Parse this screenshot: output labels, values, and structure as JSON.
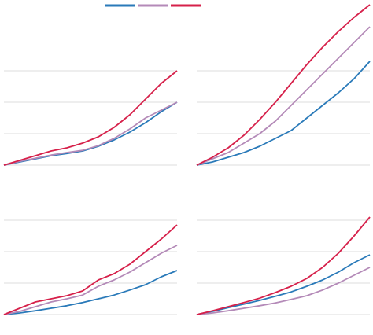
{
  "chart_data": [
    {
      "type": "line",
      "ylim": [
        0,
        5.2
      ],
      "yticks": [
        0,
        1,
        2,
        3
      ],
      "grid": true,
      "series": [
        {
          "color": "#2a7ab9",
          "values": [
            0,
            0.1,
            0.2,
            0.3,
            0.37,
            0.45,
            0.6,
            0.8,
            1.05,
            1.35,
            1.7,
            2.0
          ]
        },
        {
          "color": "#b48ab8",
          "values": [
            0,
            0.12,
            0.22,
            0.32,
            0.4,
            0.47,
            0.62,
            0.85,
            1.15,
            1.5,
            1.75,
            2.0
          ]
        },
        {
          "color": "#d6204a",
          "values": [
            0,
            0.15,
            0.3,
            0.45,
            0.55,
            0.7,
            0.9,
            1.2,
            1.6,
            2.1,
            2.6,
            3.0
          ]
        }
      ]
    },
    {
      "type": "line",
      "ylim": [
        0,
        5.2
      ],
      "yticks": [
        0,
        1,
        2,
        3
      ],
      "grid": true,
      "series": [
        {
          "color": "#2a7ab9",
          "values": [
            0,
            0.1,
            0.25,
            0.4,
            0.6,
            0.85,
            1.1,
            1.5,
            1.9,
            2.3,
            2.75,
            3.3
          ]
        },
        {
          "color": "#b48ab8",
          "values": [
            0,
            0.2,
            0.4,
            0.7,
            1.0,
            1.4,
            1.9,
            2.4,
            2.9,
            3.4,
            3.9,
            4.4
          ]
        },
        {
          "color": "#d6204a",
          "values": [
            0,
            0.25,
            0.55,
            0.95,
            1.45,
            2.0,
            2.6,
            3.2,
            3.75,
            4.25,
            4.7,
            5.1
          ]
        }
      ]
    },
    {
      "type": "line",
      "ylim": [
        0,
        4
      ],
      "yticks": [
        0,
        1,
        2,
        3
      ],
      "grid": true,
      "series": [
        {
          "color": "#2a7ab9",
          "values": [
            0,
            0.05,
            0.12,
            0.2,
            0.28,
            0.38,
            0.5,
            0.62,
            0.78,
            0.95,
            1.2,
            1.4
          ]
        },
        {
          "color": "#b48ab8",
          "values": [
            0,
            0.1,
            0.25,
            0.4,
            0.5,
            0.62,
            0.9,
            1.1,
            1.35,
            1.65,
            1.95,
            2.2
          ]
        },
        {
          "color": "#d6204a",
          "values": [
            0,
            0.2,
            0.4,
            0.5,
            0.6,
            0.75,
            1.1,
            1.3,
            1.6,
            2.0,
            2.4,
            2.85
          ]
        }
      ]
    },
    {
      "type": "line",
      "ylim": [
        0,
        4
      ],
      "yticks": [
        0,
        1,
        2,
        3
      ],
      "grid": true,
      "series": [
        {
          "color": "#2a7ab9",
          "values": [
            0,
            0.1,
            0.22,
            0.33,
            0.45,
            0.58,
            0.72,
            0.9,
            1.1,
            1.35,
            1.65,
            1.9
          ]
        },
        {
          "color": "#b48ab8",
          "values": [
            0,
            0.05,
            0.12,
            0.2,
            0.28,
            0.37,
            0.48,
            0.6,
            0.78,
            1.0,
            1.25,
            1.5
          ]
        },
        {
          "color": "#d6204a",
          "values": [
            0,
            0.12,
            0.25,
            0.38,
            0.52,
            0.7,
            0.9,
            1.15,
            1.5,
            1.95,
            2.5,
            3.1
          ]
        }
      ]
    }
  ]
}
